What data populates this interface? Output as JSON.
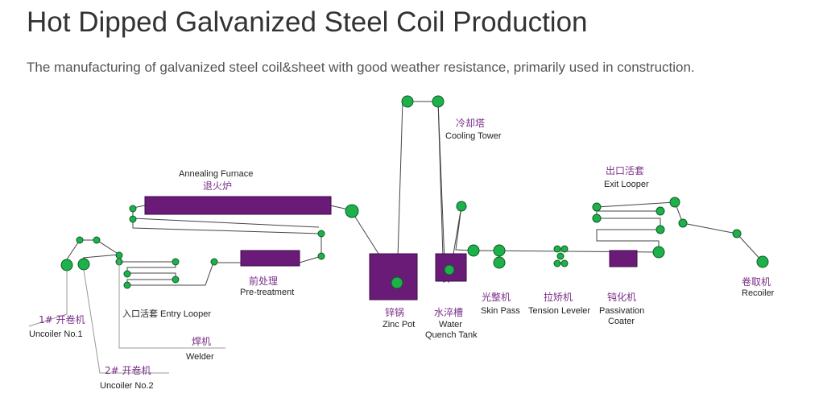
{
  "header": {
    "title": "Hot Dipped Galvanized Steel Coil Production",
    "subtitle": "The manufacturing of galvanized steel coil&sheet with good weather resistance, primarily used in construction."
  },
  "diagram": {
    "labels": {
      "annealing_en": "Annealing Furnace",
      "annealing_cn": "退火炉",
      "cooling_cn": "冷却塔",
      "cooling_en": "Cooling Tower",
      "exit_looper_cn": "出口活套",
      "exit_looper_en": "Exit Looper",
      "pretreatment_cn": "前处理",
      "pretreatment_en": "Pre-treatment",
      "entry_looper": "入口活套 Entry  Looper",
      "uncoiler1_cn": "1# 开卷机",
      "uncoiler1_en": "Uncoiler No.1",
      "welder_cn": "焊机",
      "welder_en": "Welder",
      "uncoiler2_cn": "2# 开卷机",
      "uncoiler2_en": "Uncoiler No.2",
      "zinc_pot_cn": "锌锅",
      "zinc_pot_en": "Zinc Pot",
      "quench_cn": "水淬槽",
      "quench_en1": "Water",
      "quench_en2": "Quench Tank",
      "skin_pass_cn": "光整机",
      "skin_pass_en": "Skin Pass",
      "tension_cn": "拉矫机",
      "tension_en": "Tension Leveler",
      "passivation_cn": "钝化机",
      "passivation_en1": "Passivation",
      "passivation_en2": "Coater",
      "recoiler_cn": "卷取机",
      "recoiler_en": "Recoiler"
    },
    "colors": {
      "equipment": "#6a1b78",
      "roll": "#1db04b",
      "chinese_label": "#7b2f8a",
      "strip": "#444444"
    }
  }
}
